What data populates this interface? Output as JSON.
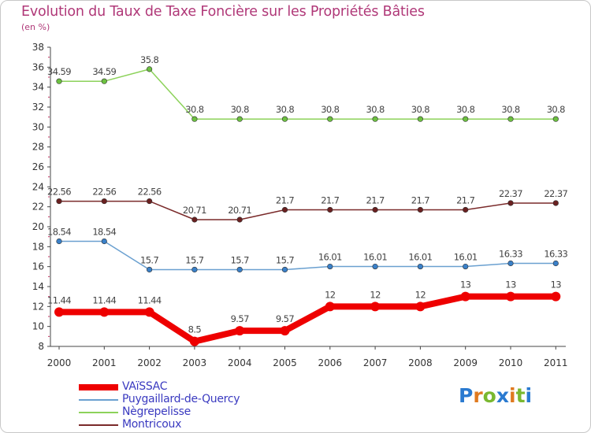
{
  "header": {
    "title": "Evolution du Taux de Taxe Foncière sur les Propriétés Bâties",
    "unit": "(en %)"
  },
  "chart_data": {
    "type": "line",
    "title": "Evolution du Taux de Taxe Foncière sur les Propriétés Bâties",
    "ylabel": "(en %)",
    "xlabel": "",
    "ylim": [
      8,
      38
    ],
    "yticks": [
      8,
      10,
      12,
      14,
      16,
      18,
      20,
      22,
      24,
      26,
      28,
      30,
      32,
      34,
      36,
      38
    ],
    "categories": [
      "2000",
      "2001",
      "2002",
      "2003",
      "2004",
      "2005",
      "2006",
      "2007",
      "2008",
      "2009",
      "2010",
      "2011"
    ],
    "grid": false,
    "legend_position": "bottom-left",
    "series": [
      {
        "name": "Nègrepelisse",
        "color": "#8cd25a",
        "marker": "#6cc040",
        "values": [
          34.59,
          34.59,
          35.8,
          30.8,
          30.8,
          30.8,
          30.8,
          30.8,
          30.8,
          30.8,
          30.8,
          30.8
        ],
        "labels": [
          "34.59",
          "34.59",
          "35.8",
          "30.8",
          "30.8",
          "30.8",
          "30.8",
          "30.8",
          "30.8",
          "30.8",
          "30.8",
          "30.8"
        ]
      },
      {
        "name": "Montricoux",
        "color": "#7a2a2a",
        "marker": "#6a2020",
        "values": [
          22.56,
          22.56,
          22.56,
          20.71,
          20.71,
          21.7,
          21.7,
          21.7,
          21.7,
          21.7,
          22.37,
          22.37
        ],
        "labels": [
          "22.56",
          "22.56",
          "22.56",
          "20.71",
          "20.71",
          "21.7",
          "21.7",
          "21.7",
          "21.7",
          "21.7",
          "22.37",
          "22.37"
        ]
      },
      {
        "name": "Puygaillard-de-Quercy",
        "color": "#6aa0d0",
        "marker": "#3a80c8",
        "values": [
          18.54,
          18.54,
          15.7,
          15.7,
          15.7,
          15.7,
          16.01,
          16.01,
          16.01,
          16.01,
          16.33,
          16.33
        ],
        "labels": [
          "18.54",
          "18.54",
          "15.7",
          "15.7",
          "15.7",
          "15.7",
          "16.01",
          "16.01",
          "16.01",
          "16.01",
          "16.33",
          "16.33"
        ]
      },
      {
        "name": "VAïSSAC",
        "color": "#ee0000",
        "marker": "#ee0000",
        "values": [
          11.44,
          11.44,
          11.44,
          8.5,
          9.57,
          9.57,
          12,
          12,
          12,
          13,
          13,
          13
        ],
        "labels": [
          "11.44",
          "11.44",
          "11.44",
          "8.5",
          "9.57",
          "9.57",
          "12",
          "12",
          "12",
          "13",
          "13",
          "13"
        ]
      }
    ]
  },
  "legend": {
    "items": [
      {
        "label": "VAïSSAC",
        "color": "#ee0000"
      },
      {
        "label": "Puygaillard-de-Quercy",
        "color": "#6aa0d0"
      },
      {
        "label": "Nègrepelisse",
        "color": "#8cd25a"
      },
      {
        "label": "Montricoux",
        "color": "#7a2a2a"
      }
    ]
  },
  "logo": {
    "text": "Proxiti",
    "letters": [
      "P",
      "r",
      "o",
      "x",
      "i",
      "t",
      "i"
    ],
    "colors": [
      "#2a7ad0",
      "#e07a20",
      "#7ab830",
      "#2a7ad0",
      "#e07a20",
      "#7ab830",
      "#2a7ad0"
    ]
  }
}
